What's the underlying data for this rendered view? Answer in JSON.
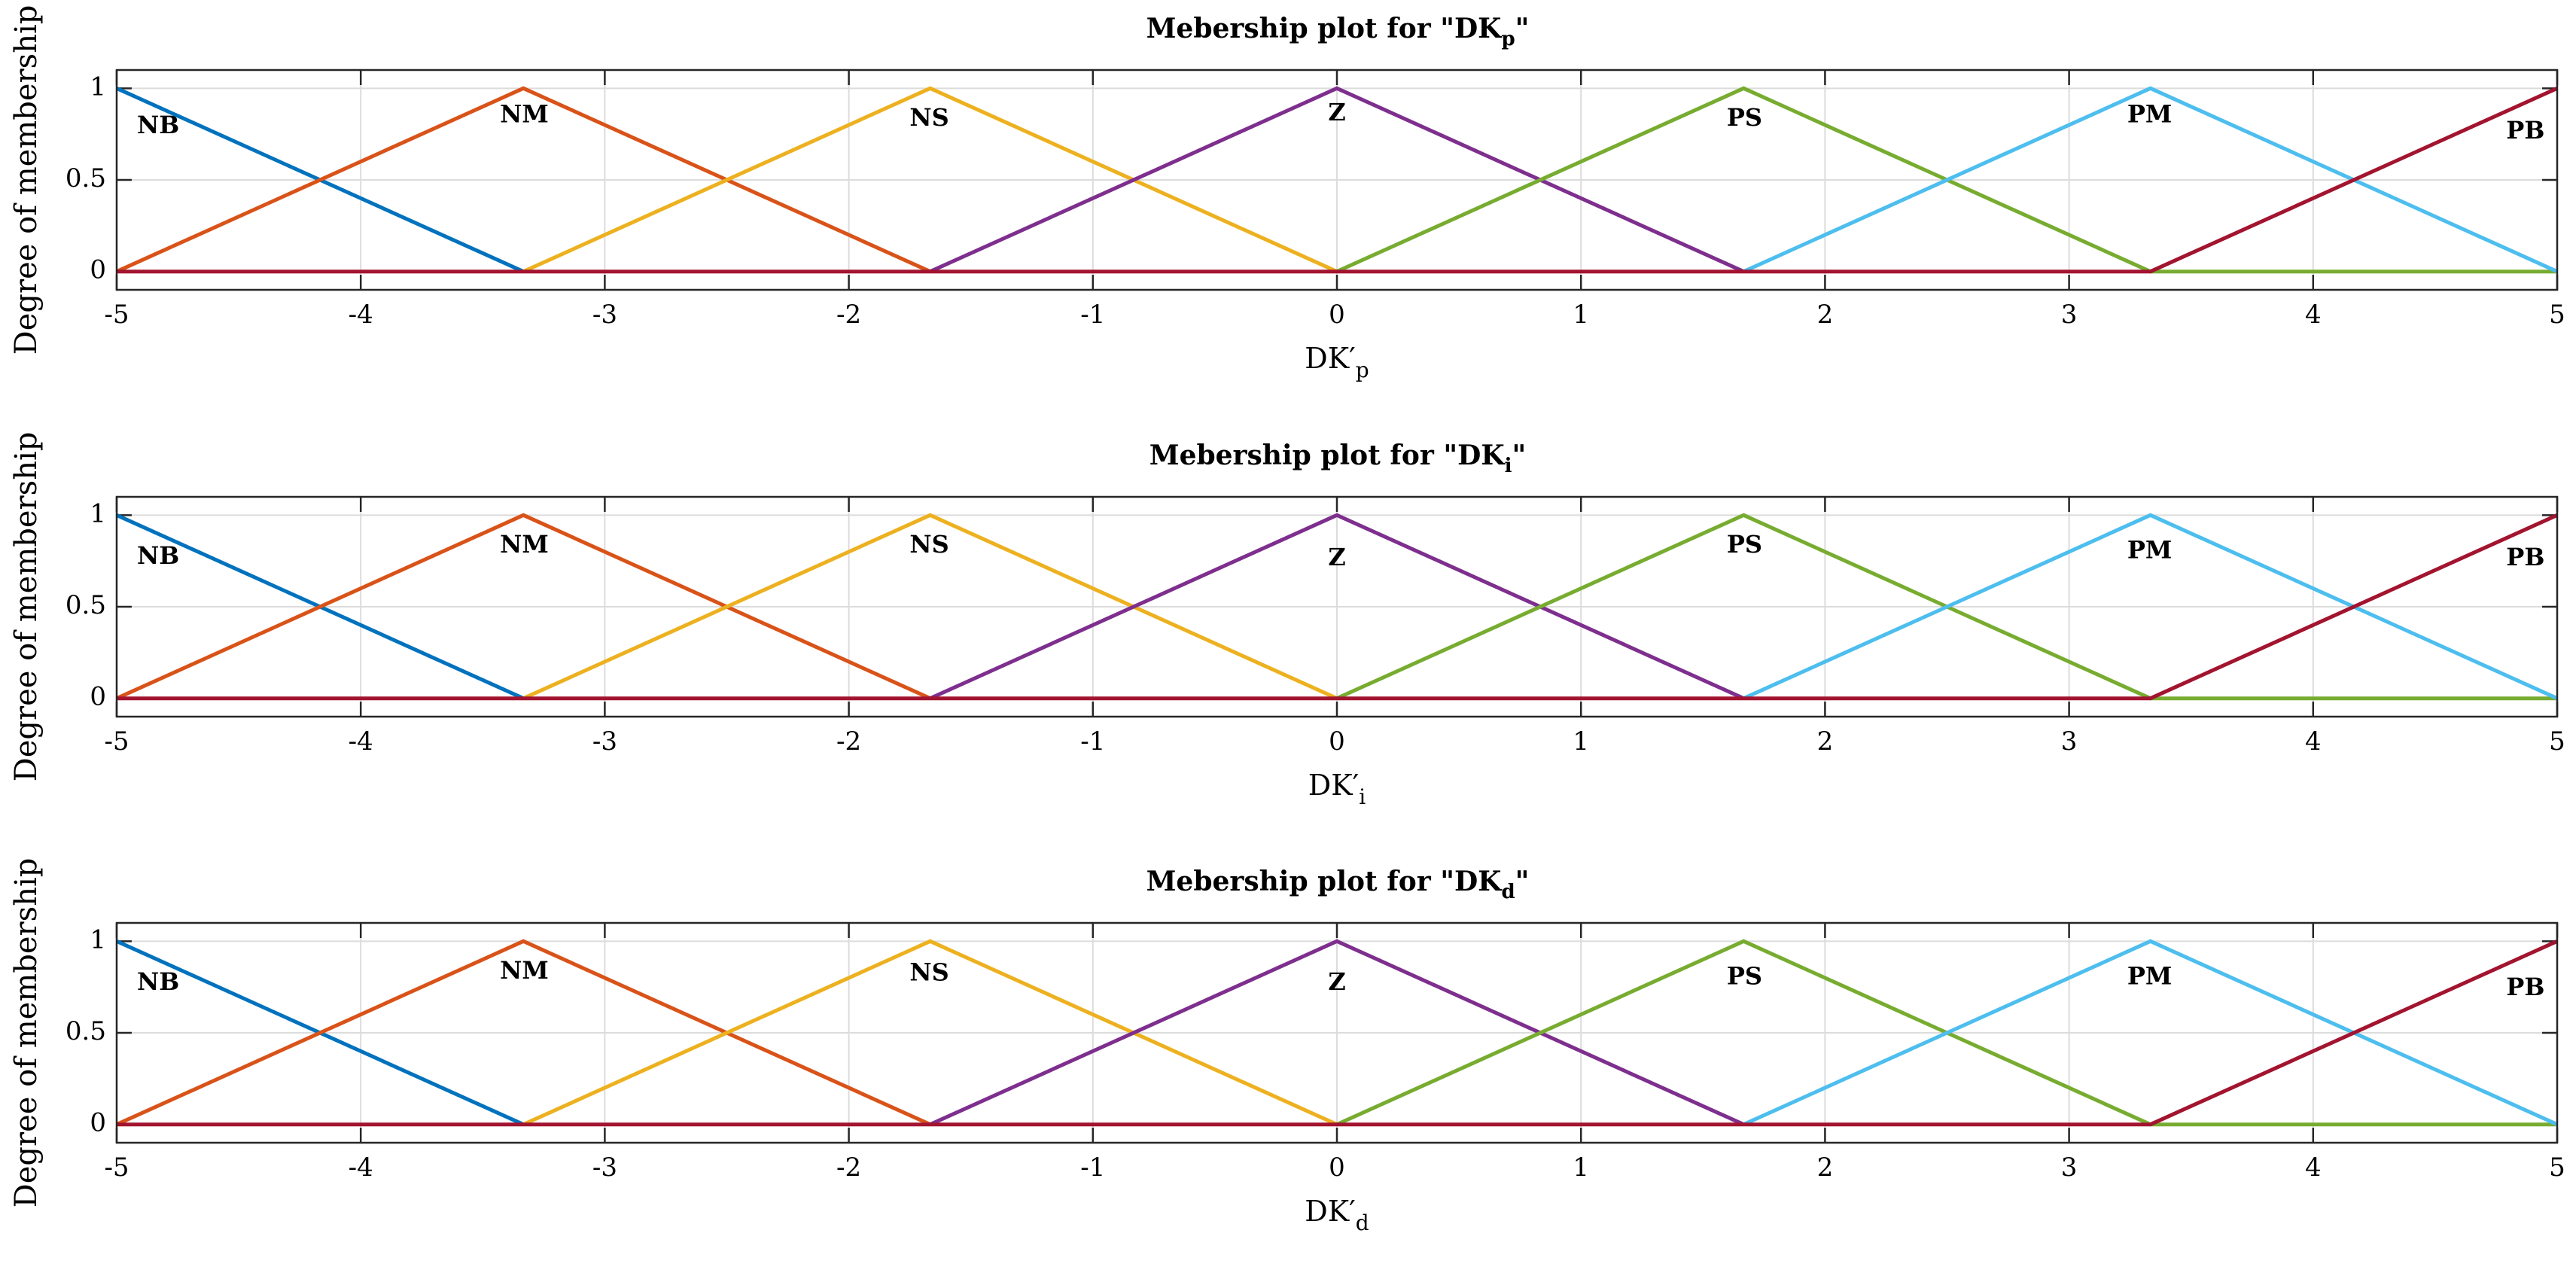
{
  "chart_data": [
    {
      "type": "line",
      "title_prefix": "Mebership plot for \"DK",
      "title_subscript": "p",
      "title_suffix": "\"",
      "xlabel_main": "DK′",
      "xlabel_sub": "p",
      "ylabel": "Degree of membership",
      "xlim": [
        -5,
        5
      ],
      "ylim": [
        -0.1,
        1.1
      ],
      "xticks": [
        -5,
        -4,
        -3,
        -2,
        -1,
        0,
        1,
        2,
        3,
        4,
        5
      ],
      "yticks": [
        0,
        0.5,
        1
      ],
      "xtick_labels": [
        "-5",
        "-4",
        "-3",
        "-2",
        "-1",
        "0",
        "1",
        "2",
        "3",
        "4",
        "5"
      ],
      "ytick_labels": [
        "0",
        "0.5",
        "1"
      ],
      "grid": true,
      "series": [
        {
          "name": "NB",
          "color": "#0072BD",
          "x": [
            -5,
            -3.3333
          ],
          "y": [
            1,
            0
          ]
        },
        {
          "name": "NM",
          "color": "#D95319",
          "x": [
            -5,
            -3.3333,
            -1.6667
          ],
          "y": [
            0,
            1,
            0
          ]
        },
        {
          "name": "NS",
          "color": "#EDB120",
          "x": [
            -3.3333,
            -1.6667,
            0
          ],
          "y": [
            0,
            1,
            0
          ]
        },
        {
          "name": "Z",
          "color": "#7E2F8E",
          "x": [
            -1.6667,
            0,
            1.6667
          ],
          "y": [
            0,
            1,
            0
          ]
        },
        {
          "name": "PS",
          "color": "#77AC30",
          "x": [
            0,
            1.6667,
            3.3333,
            5
          ],
          "y": [
            0,
            1,
            0,
            0
          ]
        },
        {
          "name": "PM",
          "color": "#4DBEEE",
          "x": [
            1.6667,
            3.3333,
            5
          ],
          "y": [
            0,
            1,
            0
          ]
        },
        {
          "name": "PB",
          "color": "#A2142F",
          "x": [
            -5,
            3.3333,
            5
          ],
          "y": [
            0,
            0,
            1
          ]
        }
      ],
      "labels": [
        {
          "text": "NB",
          "x": -4.83,
          "y": 0.79
        },
        {
          "text": "NM",
          "x": -3.33,
          "y": 0.85
        },
        {
          "text": "NS",
          "x": -1.67,
          "y": 0.83
        },
        {
          "text": "Z",
          "x": 0.0,
          "y": 0.86
        },
        {
          "text": "PS",
          "x": 1.67,
          "y": 0.83
        },
        {
          "text": "PM",
          "x": 3.33,
          "y": 0.85
        },
        {
          "text": "PB",
          "x": 4.87,
          "y": 0.76
        }
      ]
    },
    {
      "type": "line",
      "title_prefix": "Mebership plot for \"DK",
      "title_subscript": "i",
      "title_suffix": "\"",
      "xlabel_main": "DK′",
      "xlabel_sub": "i",
      "ylabel": "Degree of membership",
      "xlim": [
        -5,
        5
      ],
      "ylim": [
        -0.1,
        1.1
      ],
      "xticks": [
        -5,
        -4,
        -3,
        -2,
        -1,
        0,
        1,
        2,
        3,
        4,
        5
      ],
      "yticks": [
        0,
        0.5,
        1
      ],
      "xtick_labels": [
        "-5",
        "-4",
        "-3",
        "-2",
        "-1",
        "0",
        "1",
        "2",
        "3",
        "4",
        "5"
      ],
      "ytick_labels": [
        "0",
        "0.5",
        "1"
      ],
      "grid": true,
      "series": [
        {
          "name": "NB",
          "color": "#0072BD",
          "x": [
            -5,
            -3.3333
          ],
          "y": [
            1,
            0
          ]
        },
        {
          "name": "NM",
          "color": "#D95319",
          "x": [
            -5,
            -3.3333,
            -1.6667
          ],
          "y": [
            0,
            1,
            0
          ]
        },
        {
          "name": "NS",
          "color": "#EDB120",
          "x": [
            -3.3333,
            -1.6667,
            0
          ],
          "y": [
            0,
            1,
            0
          ]
        },
        {
          "name": "Z",
          "color": "#7E2F8E",
          "x": [
            -1.6667,
            0,
            1.6667
          ],
          "y": [
            0,
            1,
            0
          ]
        },
        {
          "name": "PS",
          "color": "#77AC30",
          "x": [
            0,
            1.6667,
            3.3333,
            5
          ],
          "y": [
            0,
            1,
            0,
            0
          ]
        },
        {
          "name": "PM",
          "color": "#4DBEEE",
          "x": [
            1.6667,
            3.3333,
            5
          ],
          "y": [
            0,
            1,
            0
          ]
        },
        {
          "name": "PB",
          "color": "#A2142F",
          "x": [
            -5,
            3.3333,
            5
          ],
          "y": [
            0,
            0,
            1
          ]
        }
      ],
      "labels": [
        {
          "text": "NB",
          "x": -4.83,
          "y": 0.77
        },
        {
          "text": "NM",
          "x": -3.33,
          "y": 0.83
        },
        {
          "text": "NS",
          "x": -1.67,
          "y": 0.83
        },
        {
          "text": "Z",
          "x": 0.0,
          "y": 0.76
        },
        {
          "text": "PS",
          "x": 1.67,
          "y": 0.83
        },
        {
          "text": "PM",
          "x": 3.33,
          "y": 0.8
        },
        {
          "text": "PB",
          "x": 4.87,
          "y": 0.76
        }
      ]
    },
    {
      "type": "line",
      "title_prefix": "Mebership plot for \"DK",
      "title_subscript": "d",
      "title_suffix": "\"",
      "xlabel_main": "DK′",
      "xlabel_sub": "d",
      "ylabel": "Degree of membership",
      "xlim": [
        -5,
        5
      ],
      "ylim": [
        -0.1,
        1.1
      ],
      "xticks": [
        -5,
        -4,
        -3,
        -2,
        -1,
        0,
        1,
        2,
        3,
        4,
        5
      ],
      "yticks": [
        0,
        0.5,
        1
      ],
      "xtick_labels": [
        "-5",
        "-4",
        "-3",
        "-2",
        "-1",
        "0",
        "1",
        "2",
        "3",
        "4",
        "5"
      ],
      "ytick_labels": [
        "0",
        "0.5",
        "1"
      ],
      "grid": true,
      "series": [
        {
          "name": "NB",
          "color": "#0072BD",
          "x": [
            -5,
            -3.3333
          ],
          "y": [
            1,
            0
          ]
        },
        {
          "name": "NM",
          "color": "#D95319",
          "x": [
            -5,
            -3.3333,
            -1.6667
          ],
          "y": [
            0,
            1,
            0
          ]
        },
        {
          "name": "NS",
          "color": "#EDB120",
          "x": [
            -3.3333,
            -1.6667,
            0
          ],
          "y": [
            0,
            1,
            0
          ]
        },
        {
          "name": "Z",
          "color": "#7E2F8E",
          "x": [
            -1.6667,
            0,
            1.6667
          ],
          "y": [
            0,
            1,
            0
          ]
        },
        {
          "name": "PS",
          "color": "#77AC30",
          "x": [
            0,
            1.6667,
            3.3333,
            5
          ],
          "y": [
            0,
            1,
            0,
            0
          ]
        },
        {
          "name": "PM",
          "color": "#4DBEEE",
          "x": [
            1.6667,
            3.3333,
            5
          ],
          "y": [
            0,
            1,
            0
          ]
        },
        {
          "name": "PB",
          "color": "#A2142F",
          "x": [
            -5,
            3.3333,
            5
          ],
          "y": [
            0,
            0,
            1
          ]
        }
      ],
      "labels": [
        {
          "text": "NB",
          "x": -4.83,
          "y": 0.77
        },
        {
          "text": "NM",
          "x": -3.33,
          "y": 0.83
        },
        {
          "text": "NS",
          "x": -1.67,
          "y": 0.82
        },
        {
          "text": "Z",
          "x": 0.0,
          "y": 0.77
        },
        {
          "text": "PS",
          "x": 1.67,
          "y": 0.8
        },
        {
          "text": "PM",
          "x": 3.33,
          "y": 0.8
        },
        {
          "text": "PB",
          "x": 4.87,
          "y": 0.74
        }
      ]
    }
  ]
}
